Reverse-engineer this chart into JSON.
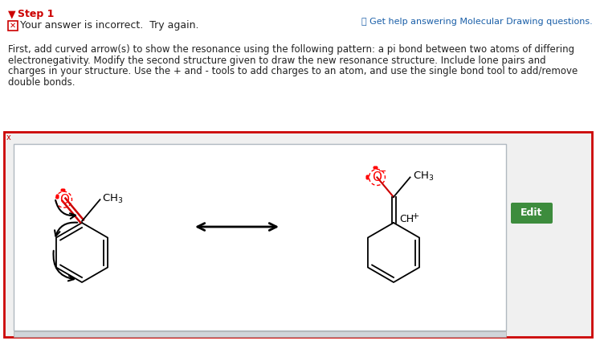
{
  "title_color": "#cc0000",
  "help_text": "ⓘ Get help answering Molecular Drawing questions.",
  "incorrect_text": "Your answer is incorrect.  Try again.",
  "body_lines": [
    "First, add curved arrow(s) to show the resonance using the following pattern: a pi bond between two atoms of differing",
    "electronegativity. Modify the second structure given to draw the new resonance structure. Include lone pairs and",
    "charges in your structure. Use the + and - tools to add charges to an atom, and use the single bond tool to add/remove",
    "double bonds."
  ],
  "bg_color": "#ffffff",
  "box_border_color": "#cc0000",
  "inner_box_bg": "#ffffff",
  "inner_box_border_color": "#b0b8c0",
  "edit_button_color": "#3d8c3d",
  "edit_button_text": "Edit"
}
